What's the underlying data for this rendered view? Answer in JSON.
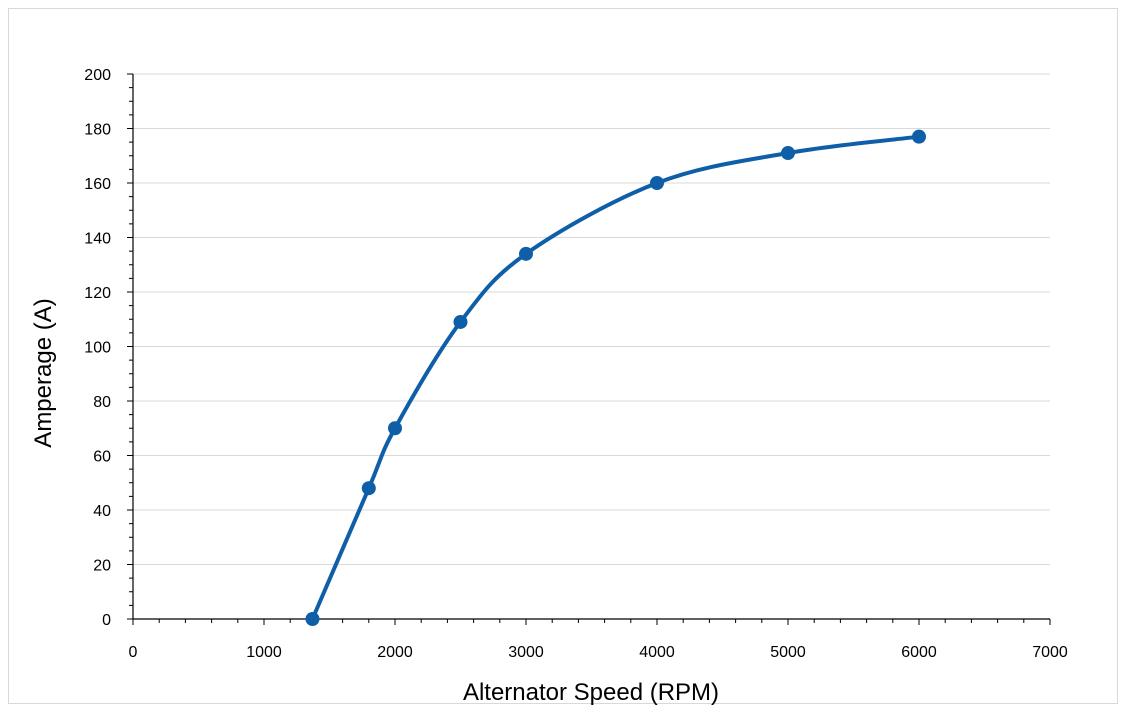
{
  "chart_data": {
    "type": "line",
    "title": "",
    "xlabel": "Alternator Speed (RPM)",
    "ylabel": "Amperage (A)",
    "xlim": [
      0,
      7000
    ],
    "ylim": [
      0,
      200
    ],
    "xticks": [
      0,
      1000,
      2000,
      3000,
      4000,
      5000,
      6000,
      7000
    ],
    "yticks": [
      0,
      20,
      40,
      60,
      80,
      100,
      120,
      140,
      160,
      180,
      200
    ],
    "grid": "horizontal",
    "legend": "none",
    "smooth": true,
    "series": [
      {
        "color": "#0E5FA8",
        "x": [
          1370,
          1800,
          2000,
          2500,
          3000,
          4000,
          5000,
          6000
        ],
        "y": [
          0,
          48,
          70,
          109,
          134,
          160,
          171,
          177
        ]
      }
    ]
  }
}
